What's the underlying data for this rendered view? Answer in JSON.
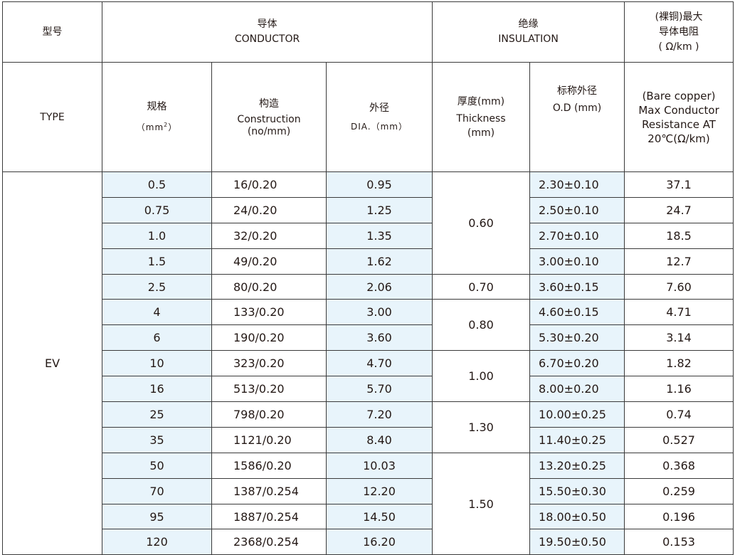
{
  "header": {
    "type_cn": "型号",
    "type_en": "TYPE",
    "conductor_cn": "导体",
    "conductor_en": "CONDUCTOR",
    "insulation_cn": "绝缘",
    "insulation_en": "INSULATION",
    "resistance_cn1": "(裸铜)最大",
    "resistance_cn2": "导体电阻",
    "resistance_unit": "( Ω/km )",
    "spec_cn": "规格",
    "spec_unit": "（mm",
    "spec_sup": "2",
    "spec_close": "）",
    "construction_cn": "构造",
    "construction_en": "Construction",
    "construction_unit": "(no/mm)",
    "dia_cn": "外径",
    "dia_en": "DIA.（mm）",
    "thickness_cn": "厚度(mm)",
    "thickness_en": "Thickness",
    "thickness_unit": "(mm)",
    "od_cn": "标称外径",
    "od_en": "O.D (mm)",
    "res_en1": "(Bare copper)",
    "res_en2": "Max Conductor",
    "res_en3": "Resistance  AT",
    "res_en4": "20℃(Ω/km)"
  },
  "type_value": "EV",
  "rows": [
    {
      "spec": "0.5",
      "construction": "16/0.20",
      "dia": "0.95",
      "thickness": "0.60",
      "od": "2.30±0.10",
      "resistance": "37.1"
    },
    {
      "spec": "0.75",
      "construction": "24/0.20",
      "dia": "1.25",
      "od": "2.50±0.10",
      "resistance": "24.7"
    },
    {
      "spec": "1.0",
      "construction": "32/0.20",
      "dia": "1.35",
      "od": "2.70±0.10",
      "resistance": "18.5"
    },
    {
      "spec": "1.5",
      "construction": "49/0.20",
      "dia": "1.62",
      "od": "3.00±0.10",
      "resistance": "12.7"
    },
    {
      "spec": "2.5",
      "construction": "80/0.20",
      "dia": "2.06",
      "thickness": "0.70",
      "od": "3.60±0.15",
      "resistance": "7.60"
    },
    {
      "spec": "4",
      "construction": "133/0.20",
      "dia": "3.00",
      "thickness": "0.80",
      "od": "4.60±0.15",
      "resistance": "4.71"
    },
    {
      "spec": "6",
      "construction": "190/0.20",
      "dia": "3.60",
      "od": "5.30±0.20",
      "resistance": "3.14"
    },
    {
      "spec": "10",
      "construction": "323/0.20",
      "dia": "4.70",
      "thickness": "1.00",
      "od": "6.70±0.20",
      "resistance": "1.82"
    },
    {
      "spec": "16",
      "construction": "513/0.20",
      "dia": "5.70",
      "od": "8.00±0.20",
      "resistance": "1.16"
    },
    {
      "spec": "25",
      "construction": "798/0.20",
      "dia": "7.20",
      "thickness": "1.30",
      "od": "10.00±0.25",
      "resistance": "0.74"
    },
    {
      "spec": "35",
      "construction": "1121/0.20",
      "dia": "8.40",
      "od": "11.40±0.25",
      "resistance": "0.527"
    },
    {
      "spec": "50",
      "construction": "1586/0.20",
      "dia": "10.03",
      "thickness": "1.50",
      "od": "13.20±0.25",
      "resistance": "0.368"
    },
    {
      "spec": "70",
      "construction": "1387/0.254",
      "dia": "12.20",
      "od": "15.50±0.30",
      "resistance": "0.259"
    },
    {
      "spec": "95",
      "construction": "1887/0.254",
      "dia": "14.50",
      "od": "18.00±0.50",
      "resistance": "0.196"
    },
    {
      "spec": "120",
      "construction": "2368/0.254",
      "dia": "16.20",
      "od": "19.50±0.50",
      "resistance": "0.153"
    }
  ],
  "colors": {
    "highlight": "#e8f4fb",
    "border": "#3a3a3a"
  }
}
